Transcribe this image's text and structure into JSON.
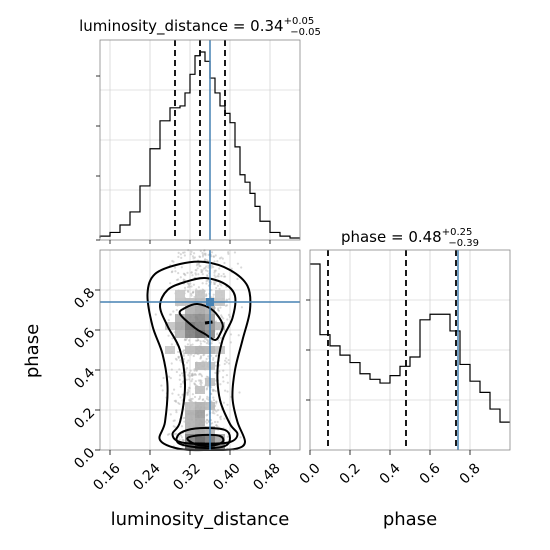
{
  "chart_data": [
    {
      "type": "histogram",
      "panel": "luminosity_distance-marginal",
      "title": {
        "param": "luminosity_distance",
        "median": "0.34",
        "plus": "+0.05",
        "minus": "−0.05"
      },
      "x_range": [
        0.14,
        0.54
      ],
      "quantiles": [
        0.29,
        0.34,
        0.39
      ],
      "truth": 0.36,
      "bins": [
        0.14,
        0.16,
        0.18,
        0.2,
        0.22,
        0.24,
        0.26,
        0.28,
        0.3,
        0.31,
        0.32,
        0.33,
        0.34,
        0.35,
        0.36,
        0.37,
        0.38,
        0.39,
        0.4,
        0.41,
        0.42,
        0.43,
        0.44,
        0.45,
        0.46,
        0.48,
        0.5,
        0.52,
        0.54
      ],
      "counts": [
        1,
        3,
        7,
        14,
        28,
        48,
        63,
        70,
        71,
        78,
        88,
        98,
        100,
        95,
        86,
        78,
        71,
        67,
        62,
        49,
        34,
        30,
        24,
        17,
        9,
        3,
        1,
        0
      ]
    },
    {
      "type": "histogram",
      "panel": "phase-marginal",
      "title": {
        "param": "phase",
        "median": "0.48",
        "plus": "+0.25",
        "minus": "−0.39"
      },
      "x_range": [
        0.0,
        1.0
      ],
      "quantiles": [
        0.09,
        0.48,
        0.73
      ],
      "truth": 0.74,
      "bins": [
        0.0,
        0.05,
        0.1,
        0.15,
        0.2,
        0.25,
        0.3,
        0.35,
        0.4,
        0.45,
        0.5,
        0.55,
        0.6,
        0.65,
        0.7,
        0.75,
        0.8,
        0.85,
        0.9,
        0.95,
        1.0
      ],
      "counts": [
        100,
        62,
        56,
        51,
        47,
        41,
        38,
        36,
        40,
        45,
        50,
        70,
        73,
        73,
        64,
        46,
        37,
        31,
        22,
        15
      ]
    },
    {
      "type": "2d-contour",
      "panel": "luminosity_distance-vs-phase",
      "x_range": [
        0.14,
        0.54
      ],
      "y_range": [
        0.0,
        1.0
      ],
      "xlabel": "luminosity_distance",
      "ylabel": "phase",
      "x_ticks": [
        "0.16",
        "0.24",
        "0.32",
        "0.40",
        "0.48"
      ],
      "y_ticks": [
        "0.0",
        "0.2",
        "0.4",
        "0.6",
        "0.8"
      ],
      "truth": [
        0.36,
        0.74
      ],
      "contours": [
        [
          [
            0.33,
            0.03
          ],
          [
            0.36,
            0.02
          ],
          [
            0.385,
            0.04
          ],
          [
            0.38,
            0.07
          ],
          [
            0.345,
            0.075
          ],
          [
            0.315,
            0.06
          ]
        ],
        [
          [
            0.3,
            0.03
          ],
          [
            0.35,
            0.01
          ],
          [
            0.39,
            0.02
          ],
          [
            0.4,
            0.06
          ],
          [
            0.39,
            0.1
          ],
          [
            0.35,
            0.11
          ],
          [
            0.315,
            0.1
          ],
          [
            0.295,
            0.07
          ]
        ],
        [
          [
            0.3,
            0.68
          ],
          [
            0.33,
            0.61
          ],
          [
            0.35,
            0.58
          ],
          [
            0.37,
            0.55
          ],
          [
            0.38,
            0.58
          ],
          [
            0.385,
            0.63
          ],
          [
            0.365,
            0.7
          ],
          [
            0.335,
            0.73
          ],
          [
            0.31,
            0.71
          ]
        ],
        [
          [
            0.26,
            0.72
          ],
          [
            0.275,
            0.62
          ],
          [
            0.3,
            0.5
          ],
          [
            0.31,
            0.32
          ],
          [
            0.3,
            0.14
          ],
          [
            0.285,
            0.08
          ],
          [
            0.3,
            0.04
          ],
          [
            0.35,
            0.03
          ],
          [
            0.4,
            0.04
          ],
          [
            0.415,
            0.08
          ],
          [
            0.4,
            0.13
          ],
          [
            0.38,
            0.25
          ],
          [
            0.375,
            0.4
          ],
          [
            0.385,
            0.55
          ],
          [
            0.405,
            0.66
          ],
          [
            0.41,
            0.77
          ],
          [
            0.39,
            0.83
          ],
          [
            0.35,
            0.86
          ],
          [
            0.31,
            0.84
          ],
          [
            0.275,
            0.8
          ]
        ],
        [
          [
            0.235,
            0.78
          ],
          [
            0.245,
            0.62
          ],
          [
            0.265,
            0.48
          ],
          [
            0.275,
            0.32
          ],
          [
            0.27,
            0.14
          ],
          [
            0.26,
            0.05
          ],
          [
            0.3,
            0.005
          ],
          [
            0.36,
            0.0
          ],
          [
            0.41,
            0.005
          ],
          [
            0.43,
            0.04
          ],
          [
            0.415,
            0.14
          ],
          [
            0.405,
            0.26
          ],
          [
            0.41,
            0.4
          ],
          [
            0.425,
            0.55
          ],
          [
            0.44,
            0.7
          ],
          [
            0.435,
            0.82
          ],
          [
            0.4,
            0.9
          ],
          [
            0.35,
            0.94
          ],
          [
            0.3,
            0.93
          ],
          [
            0.25,
            0.88
          ]
        ]
      ],
      "density_cells": [
        [
          0.34,
          0.02,
          1.0
        ],
        [
          0.36,
          0.02,
          0.85
        ],
        [
          0.32,
          0.02,
          0.7
        ],
        [
          0.38,
          0.02,
          0.55
        ],
        [
          0.34,
          0.06,
          0.7
        ],
        [
          0.36,
          0.06,
          0.6
        ],
        [
          0.32,
          0.06,
          0.55
        ],
        [
          0.38,
          0.06,
          0.35
        ],
        [
          0.34,
          0.1,
          0.35
        ],
        [
          0.36,
          0.1,
          0.3
        ],
        [
          0.32,
          0.1,
          0.3
        ],
        [
          0.34,
          0.14,
          0.35
        ],
        [
          0.32,
          0.14,
          0.3
        ],
        [
          0.34,
          0.18,
          0.4
        ],
        [
          0.32,
          0.18,
          0.3
        ],
        [
          0.34,
          0.22,
          0.3
        ],
        [
          0.36,
          0.22,
          0.25
        ],
        [
          0.32,
          0.22,
          0.22
        ],
        [
          0.34,
          0.3,
          0.22
        ],
        [
          0.36,
          0.34,
          0.22
        ],
        [
          0.34,
          0.42,
          0.25
        ],
        [
          0.36,
          0.42,
          0.22
        ],
        [
          0.34,
          0.5,
          0.3
        ],
        [
          0.32,
          0.5,
          0.25
        ],
        [
          0.36,
          0.5,
          0.28
        ],
        [
          0.32,
          0.58,
          0.55
        ],
        [
          0.34,
          0.58,
          0.65
        ],
        [
          0.36,
          0.58,
          0.5
        ],
        [
          0.3,
          0.58,
          0.3
        ],
        [
          0.32,
          0.62,
          0.6
        ],
        [
          0.34,
          0.62,
          0.55
        ],
        [
          0.36,
          0.62,
          0.45
        ],
        [
          0.3,
          0.62,
          0.35
        ],
        [
          0.32,
          0.66,
          0.45
        ],
        [
          0.34,
          0.66,
          0.5
        ],
        [
          0.36,
          0.66,
          0.4
        ],
        [
          0.3,
          0.66,
          0.3
        ],
        [
          0.32,
          0.7,
          0.3
        ],
        [
          0.34,
          0.7,
          0.35
        ],
        [
          0.36,
          0.7,
          0.3
        ],
        [
          0.3,
          0.74,
          0.2
        ],
        [
          0.32,
          0.74,
          0.22
        ],
        [
          0.34,
          0.74,
          0.25
        ],
        [
          0.36,
          0.74,
          0.22
        ],
        [
          0.38,
          0.74,
          0.2
        ],
        [
          0.3,
          0.78,
          0.18
        ],
        [
          0.34,
          0.78,
          0.2
        ],
        [
          0.38,
          0.78,
          0.18
        ],
        [
          0.28,
          0.5,
          0.18
        ],
        [
          0.28,
          0.62,
          0.2
        ],
        [
          0.38,
          0.5,
          0.2
        ],
        [
          0.38,
          0.62,
          0.25
        ]
      ]
    },
    {
      "type": "axis",
      "panel": "phase-x-axis",
      "xlabel": "phase",
      "x_ticks": [
        "0.0",
        "0.2",
        "0.4",
        "0.6",
        "0.8"
      ]
    }
  ],
  "colors": {
    "truth": "#4682b4",
    "hist": "#000000",
    "grid": "#c8c8c8",
    "scatter": "#b4b4b4"
  }
}
